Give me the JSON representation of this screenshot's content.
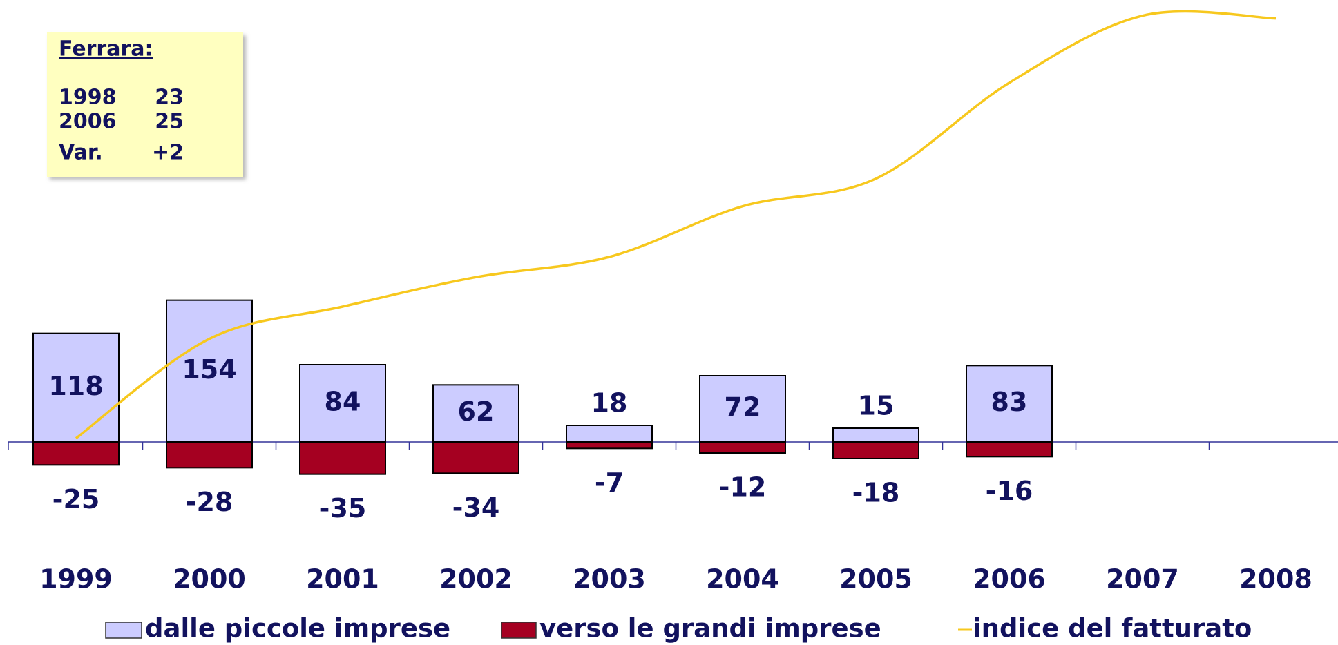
{
  "chart_data": {
    "type": "bar",
    "categories": [
      "1999",
      "2000",
      "2001",
      "2002",
      "2003",
      "2004",
      "2005",
      "2006",
      "2007",
      "2008"
    ],
    "series": [
      {
        "name": "dalle piccole imprese",
        "color": "#ccccff",
        "values": [
          118,
          154,
          84,
          62,
          18,
          72,
          15,
          83,
          null,
          null
        ]
      },
      {
        "name": "verso le grandi imprese",
        "color": "#a50021",
        "values": [
          -25,
          -28,
          -35,
          -34,
          -7,
          -12,
          -18,
          -16,
          null,
          null
        ]
      },
      {
        "name": "indice del fatturato",
        "type": "line",
        "color": "#f7c81e",
        "values": [
          4,
          112,
          147,
          179,
          201,
          256,
          286,
          390,
          463,
          460
        ]
      }
    ],
    "ylim": [
      -60,
      480
    ],
    "legend": "bottom",
    "annotation": {
      "title": "Ferrara:",
      "rows": [
        [
          "1998",
          "23"
        ],
        [
          "2006",
          "25"
        ],
        [
          "Var.",
          "+2"
        ]
      ]
    }
  }
}
